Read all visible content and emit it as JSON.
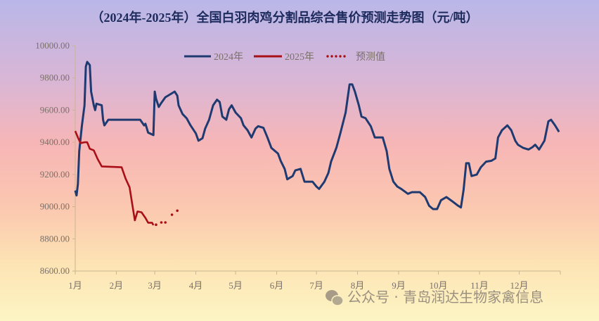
{
  "chart_data": {
    "type": "line",
    "title": "（2024年-2025年）全国白羽肉鸡分割品综合售价预测走势图（元/吨）",
    "xlabel": "",
    "ylabel": "",
    "x_tick_labels": [
      "1月",
      "2月",
      "3月",
      "4月",
      "5月",
      "6月",
      "7月",
      "8月",
      "9月",
      "10月",
      "11月",
      "12月"
    ],
    "y_tick_labels": [
      "8600.00",
      "8800.00",
      "9000.00",
      "9200.00",
      "9400.00",
      "9600.00",
      "9800.00",
      "10000.00"
    ],
    "ylim": [
      8600,
      10000
    ],
    "grid": false,
    "legend_position": "top-center",
    "series": [
      {
        "name": "2024年",
        "color": "#1f3a70",
        "style": "solid",
        "points": [
          [
            "01-01",
            9100
          ],
          [
            "01-02",
            9070
          ],
          [
            "01-03",
            9140
          ],
          [
            "01-04",
            9345
          ],
          [
            "01-06",
            9500
          ],
          [
            "01-08",
            9630
          ],
          [
            "01-09",
            9870
          ],
          [
            "01-10",
            9900
          ],
          [
            "01-12",
            9880
          ],
          [
            "01-13",
            9715
          ],
          [
            "01-15",
            9630
          ],
          [
            "01-16",
            9600
          ],
          [
            "01-17",
            9640
          ],
          [
            "01-21",
            9630
          ],
          [
            "01-22",
            9540
          ],
          [
            "01-23",
            9505
          ],
          [
            "01-26",
            9540
          ],
          [
            "02-19",
            9540
          ],
          [
            "02-22",
            9505
          ],
          [
            "02-23",
            9515
          ],
          [
            "02-25",
            9460
          ],
          [
            "02-29",
            9445
          ],
          [
            "03-01",
            9715
          ],
          [
            "03-02",
            9670
          ],
          [
            "03-04",
            9620
          ],
          [
            "03-06",
            9645
          ],
          [
            "03-09",
            9680
          ],
          [
            "03-13",
            9700
          ],
          [
            "03-16",
            9715
          ],
          [
            "03-18",
            9690
          ],
          [
            "03-19",
            9630
          ],
          [
            "03-22",
            9575
          ],
          [
            "03-25",
            9550
          ],
          [
            "03-28",
            9505
          ],
          [
            "04-01",
            9455
          ],
          [
            "04-03",
            9410
          ],
          [
            "04-06",
            9425
          ],
          [
            "04-08",
            9485
          ],
          [
            "04-11",
            9540
          ],
          [
            "04-14",
            9630
          ],
          [
            "04-17",
            9665
          ],
          [
            "04-19",
            9650
          ],
          [
            "04-21",
            9560
          ],
          [
            "04-24",
            9540
          ],
          [
            "04-26",
            9605
          ],
          [
            "04-28",
            9630
          ],
          [
            "05-01",
            9585
          ],
          [
            "05-05",
            9550
          ],
          [
            "05-07",
            9505
          ],
          [
            "05-10",
            9475
          ],
          [
            "05-13",
            9430
          ],
          [
            "05-16",
            9485
          ],
          [
            "05-18",
            9500
          ],
          [
            "05-22",
            9490
          ],
          [
            "05-25",
            9430
          ],
          [
            "05-28",
            9365
          ],
          [
            "06-02",
            9330
          ],
          [
            "06-04",
            9285
          ],
          [
            "06-07",
            9235
          ],
          [
            "06-09",
            9170
          ],
          [
            "06-13",
            9190
          ],
          [
            "06-15",
            9225
          ],
          [
            "06-19",
            9235
          ],
          [
            "06-22",
            9155
          ],
          [
            "06-28",
            9155
          ],
          [
            "07-01",
            9125
          ],
          [
            "07-03",
            9110
          ],
          [
            "07-07",
            9155
          ],
          [
            "07-10",
            9210
          ],
          [
            "07-12",
            9280
          ],
          [
            "07-16",
            9365
          ],
          [
            "07-19",
            9455
          ],
          [
            "07-23",
            9585
          ],
          [
            "07-26",
            9760
          ],
          [
            "07-28",
            9760
          ],
          [
            "07-30",
            9715
          ],
          [
            "08-02",
            9630
          ],
          [
            "08-04",
            9560
          ],
          [
            "08-07",
            9550
          ],
          [
            "08-11",
            9500
          ],
          [
            "08-14",
            9430
          ],
          [
            "08-20",
            9430
          ],
          [
            "08-23",
            9345
          ],
          [
            "08-25",
            9235
          ],
          [
            "08-28",
            9155
          ],
          [
            "08-31",
            9125
          ],
          [
            "09-03",
            9110
          ],
          [
            "09-08",
            9080
          ],
          [
            "09-11",
            9090
          ],
          [
            "09-17",
            9090
          ],
          [
            "09-21",
            9060
          ],
          [
            "09-24",
            9005
          ],
          [
            "09-27",
            8985
          ],
          [
            "09-30",
            8985
          ],
          [
            "10-03",
            9040
          ],
          [
            "10-07",
            9060
          ],
          [
            "10-12",
            9030
          ],
          [
            "10-16",
            9005
          ],
          [
            "10-18",
            8995
          ],
          [
            "10-20",
            9105
          ],
          [
            "10-22",
            9270
          ],
          [
            "10-24",
            9270
          ],
          [
            "10-26",
            9190
          ],
          [
            "10-30",
            9200
          ],
          [
            "11-02",
            9245
          ],
          [
            "11-06",
            9280
          ],
          [
            "11-10",
            9285
          ],
          [
            "11-13",
            9300
          ],
          [
            "11-15",
            9430
          ],
          [
            "11-18",
            9475
          ],
          [
            "11-22",
            9505
          ],
          [
            "11-25",
            9475
          ],
          [
            "11-28",
            9410
          ],
          [
            "11-30",
            9385
          ],
          [
            "12-04",
            9365
          ],
          [
            "12-08",
            9355
          ],
          [
            "12-11",
            9370
          ],
          [
            "12-13",
            9385
          ],
          [
            "12-16",
            9355
          ],
          [
            "12-20",
            9410
          ],
          [
            "12-23",
            9530
          ],
          [
            "12-25",
            9540
          ],
          [
            "12-28",
            9505
          ],
          [
            "12-31",
            9465
          ]
        ]
      },
      {
        "name": "2025年",
        "color": "#a80f16",
        "style": "solid",
        "points": [
          [
            "01-01",
            9470
          ],
          [
            "01-03",
            9430
          ],
          [
            "01-05",
            9395
          ],
          [
            "01-08",
            9400
          ],
          [
            "01-10",
            9400
          ],
          [
            "01-12",
            9360
          ],
          [
            "01-15",
            9350
          ],
          [
            "01-18",
            9295
          ],
          [
            "01-21",
            9250
          ],
          [
            "02-05",
            9245
          ],
          [
            "02-08",
            9175
          ],
          [
            "02-11",
            9120
          ],
          [
            "02-13",
            9015
          ],
          [
            "02-15",
            8915
          ],
          [
            "02-17",
            8970
          ],
          [
            "02-20",
            8965
          ],
          [
            "02-23",
            8930
          ],
          [
            "02-25",
            8900
          ],
          [
            "02-28",
            8900
          ],
          [
            "03-01",
            8885
          ]
        ]
      },
      {
        "name": "预测值",
        "color": "#a80f16",
        "style": "dotted",
        "points": [
          [
            "03-03",
            8888
          ],
          [
            "03-07",
            8902
          ],
          [
            "03-10",
            8902
          ],
          [
            "03-15",
            8950
          ],
          [
            "03-19",
            8975
          ]
        ]
      }
    ]
  },
  "watermark": "公众号 · 青岛润达生物家禽信息"
}
